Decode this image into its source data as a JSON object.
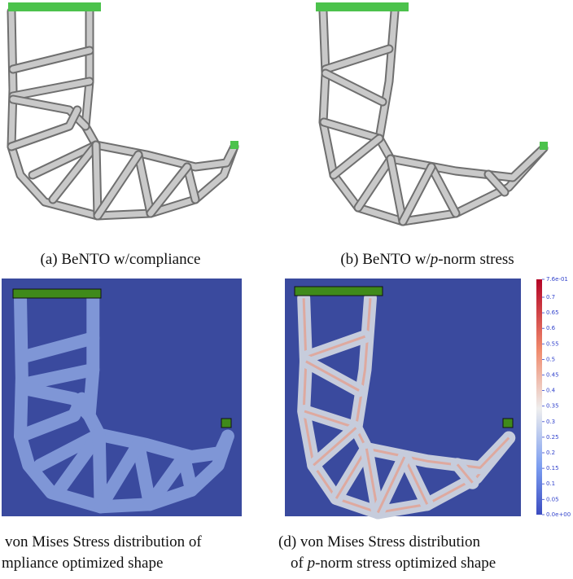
{
  "panels": {
    "a": {
      "caption": "(a) BeNTO w/compliance"
    },
    "b": {
      "caption": [
        "(b) BeNTO w/",
        "p",
        "-norm stress"
      ]
    },
    "c": {
      "caption": [
        "von Mises Stress distribution of",
        "mpliance optimized shape"
      ]
    },
    "d": {
      "caption": [
        "(d)  von  Mises  Stress  distribution",
        "of ",
        "p",
        "-norm stress optimized shape"
      ]
    }
  },
  "colorbar": {
    "labels": [
      "7.6e-01",
      "0.7",
      "0.65",
      "0.6",
      "0.55",
      "0.5",
      "0.45",
      "0.4",
      "0.35",
      "0.3",
      "0.25",
      "0.2",
      "0.15",
      "0.1",
      "0.05",
      "0.0e+00"
    ]
  }
}
